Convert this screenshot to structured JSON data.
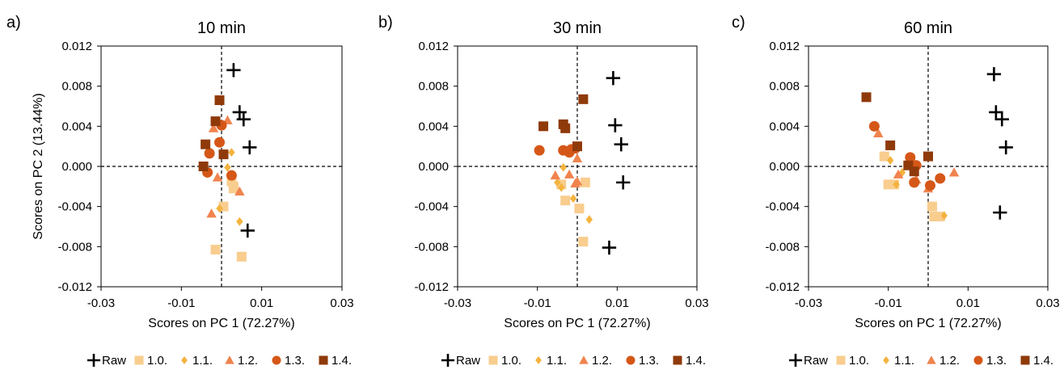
{
  "figure": {
    "x_axis_label": "Scores on PC 1 (72.27%)",
    "y_axis_label": "Scores on PC 2 (13.44%)",
    "legend": [
      {
        "name": "Raw",
        "marker": "plus",
        "color": "#000000"
      },
      {
        "name": "1.0.",
        "marker": "square",
        "color": "#F8CD8E"
      },
      {
        "name": "1.1.",
        "marker": "diamond",
        "color": "#F4B33F"
      },
      {
        "name": "1.2.",
        "marker": "triangle",
        "color": "#F0834E"
      },
      {
        "name": "1.3.",
        "marker": "circle",
        "color": "#D55718"
      },
      {
        "name": "1.4.",
        "marker": "square",
        "color": "#8F3A0A"
      }
    ]
  },
  "chart_data": [
    {
      "type": "scatter",
      "panel_label": "a)",
      "title": "10 min",
      "xlabel": "Scores on PC 1 (72.27%)",
      "ylabel": "Scores on PC 2 (13.44%)",
      "xlim": [
        -0.03,
        0.03
      ],
      "ylim": [
        -0.012,
        0.012
      ],
      "xticks": [
        "-0.03",
        "-0.01",
        "0.01",
        "0.03"
      ],
      "yticks": [
        "0.012",
        "0.008",
        "0.004",
        "0.000",
        "-0.004",
        "-0.008",
        "-0.012"
      ],
      "zero_lines": true,
      "series": [
        {
          "name": "Raw",
          "points": [
            [
              0.003,
              0.0096
            ],
            [
              0.0045,
              0.0054
            ],
            [
              0.0055,
              0.0047
            ],
            [
              0.007,
              0.0019
            ],
            [
              0.0065,
              -0.0064
            ]
          ]
        },
        {
          "name": "1.0.",
          "points": [
            [
              0.0025,
              -0.0015
            ],
            [
              0.003,
              -0.002
            ],
            [
              0.0005,
              -0.004
            ],
            [
              -0.0015,
              -0.0083
            ],
            [
              0.005,
              -0.009
            ],
            [
              0.003,
              -0.0022
            ]
          ]
        },
        {
          "name": "1.1.",
          "points": [
            [
              0.0025,
              0.0014
            ],
            [
              0.0015,
              -0.0001
            ],
            [
              0.0045,
              -0.0055
            ],
            [
              -0.0005,
              -0.0042
            ]
          ]
        },
        {
          "name": "1.2.",
          "points": [
            [
              0.0015,
              0.0046
            ],
            [
              -0.002,
              0.0038
            ],
            [
              0.0045,
              -0.0025
            ],
            [
              -0.0025,
              -0.0047
            ],
            [
              -0.001,
              -0.0011
            ]
          ]
        },
        {
          "name": "1.3.",
          "points": [
            [
              0.0,
              0.0041
            ],
            [
              -0.0005,
              0.0024
            ],
            [
              -0.003,
              0.0013
            ],
            [
              -0.0035,
              -0.0006
            ],
            [
              0.0025,
              -0.0009
            ]
          ]
        },
        {
          "name": "1.4.",
          "points": [
            [
              -0.0005,
              0.0066
            ],
            [
              -0.0015,
              0.0045
            ],
            [
              -0.004,
              0.0022
            ],
            [
              0.0005,
              0.0012
            ],
            [
              -0.0045,
              0.0
            ]
          ]
        }
      ]
    },
    {
      "type": "scatter",
      "panel_label": "b)",
      "title": "30 min",
      "xlabel": "Scores on PC 1 (72.27%)",
      "ylabel": "",
      "xlim": [
        -0.03,
        0.03
      ],
      "ylim": [
        -0.012,
        0.012
      ],
      "xticks": [
        "-0.03",
        "-0.01",
        "0.01",
        "0.03"
      ],
      "yticks": [
        "0.012",
        "0.008",
        "0.004",
        "0.000",
        "-0.004",
        "-0.008",
        "-0.012"
      ],
      "zero_lines": true,
      "series": [
        {
          "name": "Raw",
          "points": [
            [
              0.009,
              0.0088
            ],
            [
              0.0095,
              0.0041
            ],
            [
              0.011,
              0.0022
            ],
            [
              0.0115,
              -0.0016
            ],
            [
              0.008,
              -0.0081
            ]
          ]
        },
        {
          "name": "1.0.",
          "points": [
            [
              0.002,
              -0.0016
            ],
            [
              -0.004,
              -0.0018
            ],
            [
              -0.003,
              -0.0034
            ],
            [
              0.0005,
              -0.0042
            ],
            [
              0.0015,
              -0.0075
            ]
          ]
        },
        {
          "name": "1.1.",
          "points": [
            [
              -0.005,
              -0.0016
            ],
            [
              -0.004,
              -0.0021
            ],
            [
              -0.001,
              -0.0032
            ],
            [
              0.003,
              -0.0053
            ],
            [
              -0.0035,
              -0.0001
            ]
          ]
        },
        {
          "name": "1.2.",
          "points": [
            [
              -0.0055,
              -0.0009
            ],
            [
              -0.002,
              -0.0008
            ],
            [
              0.0,
              0.0008
            ],
            [
              -0.0005,
              -0.0017
            ],
            [
              0.0,
              -0.0015
            ]
          ]
        },
        {
          "name": "1.3.",
          "points": [
            [
              -0.0095,
              0.0016
            ],
            [
              -0.0035,
              0.0016
            ],
            [
              -0.002,
              0.0014
            ],
            [
              -0.0015,
              0.0017
            ],
            [
              -0.0005,
              0.0018
            ]
          ]
        },
        {
          "name": "1.4.",
          "points": [
            [
              -0.0085,
              0.004
            ],
            [
              -0.0035,
              0.0042
            ],
            [
              -0.003,
              0.0038
            ],
            [
              0.0015,
              0.0067
            ],
            [
              0.0,
              0.002
            ]
          ]
        }
      ]
    },
    {
      "type": "scatter",
      "panel_label": "c)",
      "title": "60 min",
      "xlabel": "Scores on PC 1 (72.27%)",
      "ylabel": "",
      "xlim": [
        -0.03,
        0.03
      ],
      "ylim": [
        -0.012,
        0.012
      ],
      "xticks": [
        "-0.03",
        "-0.01",
        "0.01",
        "0.03"
      ],
      "yticks": [
        "0.012",
        "0.008",
        "0.004",
        "0.000",
        "-0.004",
        "-0.008",
        "-0.012"
      ],
      "zero_lines": true,
      "series": [
        {
          "name": "Raw",
          "points": [
            [
              0.0165,
              0.0092
            ],
            [
              0.017,
              0.0054
            ],
            [
              0.0185,
              0.0047
            ],
            [
              0.0195,
              0.0019
            ],
            [
              0.018,
              -0.0046
            ]
          ]
        },
        {
          "name": "1.0.",
          "points": [
            [
              -0.011,
              0.001
            ],
            [
              -0.01,
              -0.0018
            ],
            [
              0.001,
              -0.004
            ],
            [
              0.0015,
              -0.005
            ],
            [
              0.003,
              -0.005
            ],
            [
              -0.0085,
              -0.0018
            ]
          ]
        },
        {
          "name": "1.1.",
          "points": [
            [
              -0.0095,
              0.0006
            ],
            [
              -0.008,
              -0.0018
            ],
            [
              0.004,
              -0.0049
            ],
            [
              -0.0065,
              -0.0006
            ]
          ]
        },
        {
          "name": "1.2.",
          "points": [
            [
              -0.0125,
              0.0033
            ],
            [
              -0.0075,
              -0.0008
            ],
            [
              -0.003,
              -0.0013
            ],
            [
              0.0065,
              -0.0006
            ],
            [
              0.0,
              -0.0022
            ]
          ]
        },
        {
          "name": "1.3.",
          "points": [
            [
              -0.0135,
              0.004
            ],
            [
              -0.0045,
              0.0009
            ],
            [
              -0.003,
              0.0001
            ],
            [
              0.003,
              -0.0012
            ],
            [
              -0.0035,
              -0.0016
            ],
            [
              0.0005,
              -0.0019
            ]
          ]
        },
        {
          "name": "1.4.",
          "points": [
            [
              -0.0155,
              0.0069
            ],
            [
              -0.0095,
              0.0021
            ],
            [
              -0.005,
              0.0001
            ],
            [
              -0.0035,
              -0.0005
            ],
            [
              0.0,
              0.001
            ]
          ]
        }
      ]
    }
  ]
}
